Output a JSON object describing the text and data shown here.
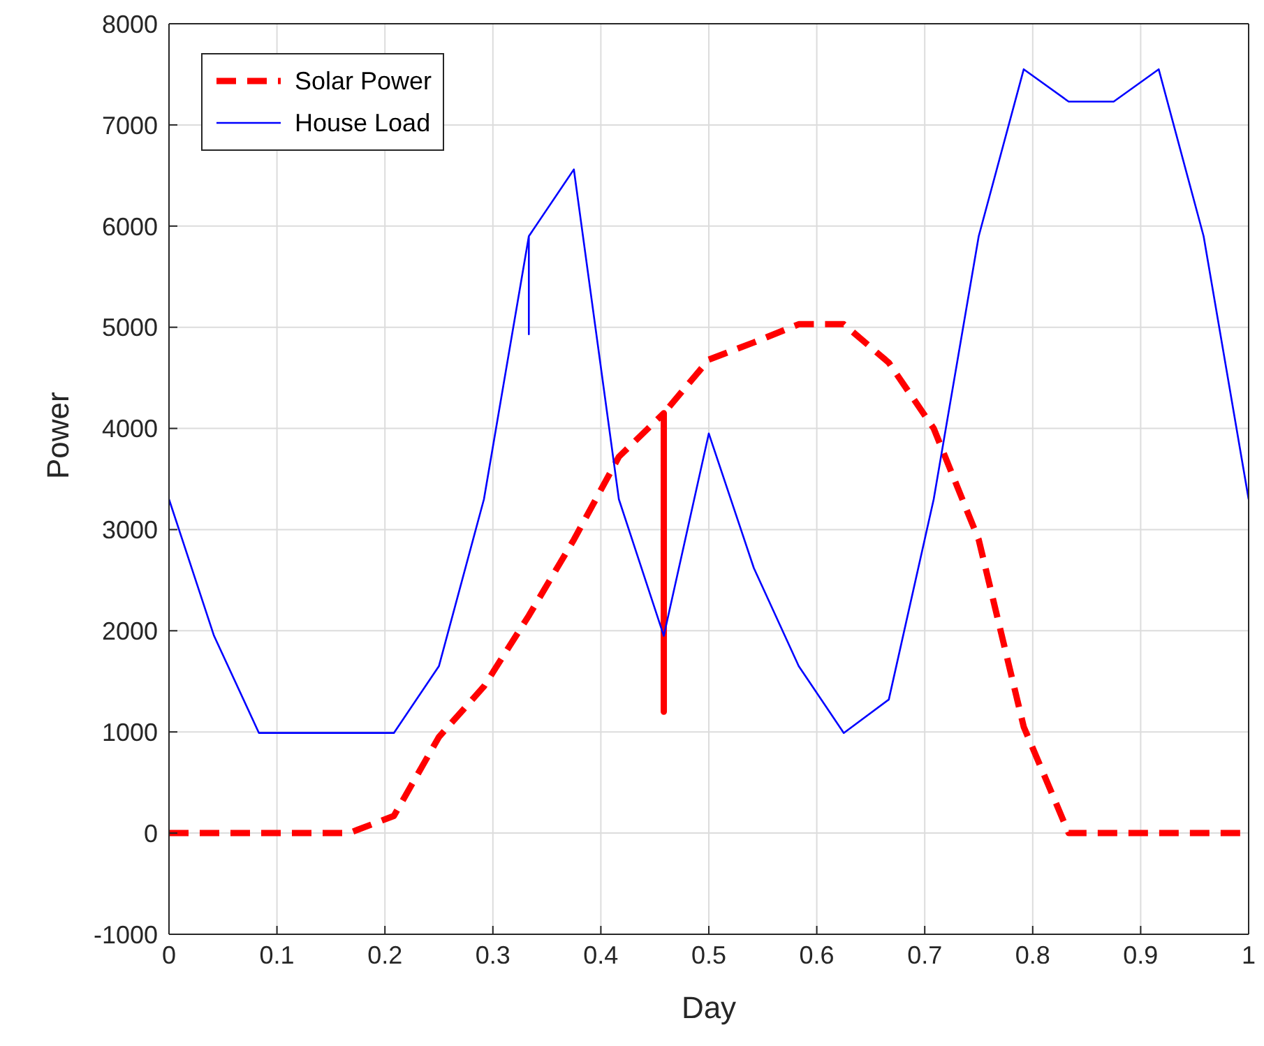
{
  "chart_data": {
    "type": "line",
    "xlabel": "Day",
    "ylabel": "Power",
    "xlim": [
      0,
      1
    ],
    "xticks": [
      0,
      0.1,
      0.2,
      0.3,
      0.4,
      0.5,
      0.6,
      0.7,
      0.8,
      0.9,
      1
    ],
    "ylim": [
      -1000,
      8000
    ],
    "yticks": [
      -1000,
      0,
      1000,
      2000,
      3000,
      4000,
      5000,
      6000,
      7000,
      8000
    ],
    "grid": true,
    "legend": "top left",
    "series": [
      {
        "name": "Solar Power",
        "color": "#ff0000",
        "line_style": "dashed",
        "x": [
          0,
          0.0417,
          0.0833,
          0.125,
          0.1667,
          0.2083,
          0.25,
          0.2917,
          0.3333,
          0.375,
          0.4167,
          0.4583,
          0.4583,
          0.4583,
          0.5,
          0.5417,
          0.5833,
          0.625,
          0.6667,
          0.7083,
          0.75,
          0.7917,
          0.8333,
          0.875,
          0.9167,
          0.9583,
          1
        ],
        "values": [
          0,
          0,
          0,
          0,
          0,
          170,
          950,
          1450,
          2150,
          2900,
          3720,
          4150,
          1200,
          4150,
          4680,
          4850,
          5030,
          5030,
          4650,
          4000,
          2900,
          1050,
          0,
          0,
          0,
          0,
          0
        ]
      },
      {
        "name": "House Load",
        "color": "#0000ff",
        "line_style": "solid",
        "x": [
          0,
          0.0417,
          0.0833,
          0.125,
          0.1667,
          0.2083,
          0.25,
          0.2917,
          0.3333,
          0.3333,
          0.3333,
          0.375,
          0.4167,
          0.4583,
          0.5,
          0.5417,
          0.5833,
          0.625,
          0.6667,
          0.7083,
          0.75,
          0.7917,
          0.8333,
          0.875,
          0.9167,
          0.9583,
          1
        ],
        "values": [
          3300,
          1950,
          990,
          990,
          990,
          990,
          1650,
          3300,
          5900,
          4930,
          5900,
          6560,
          3300,
          1950,
          3950,
          2620,
          1650,
          990,
          1320,
          3300,
          5900,
          7550,
          7230,
          7230,
          7550,
          5900,
          3300
        ]
      }
    ]
  }
}
